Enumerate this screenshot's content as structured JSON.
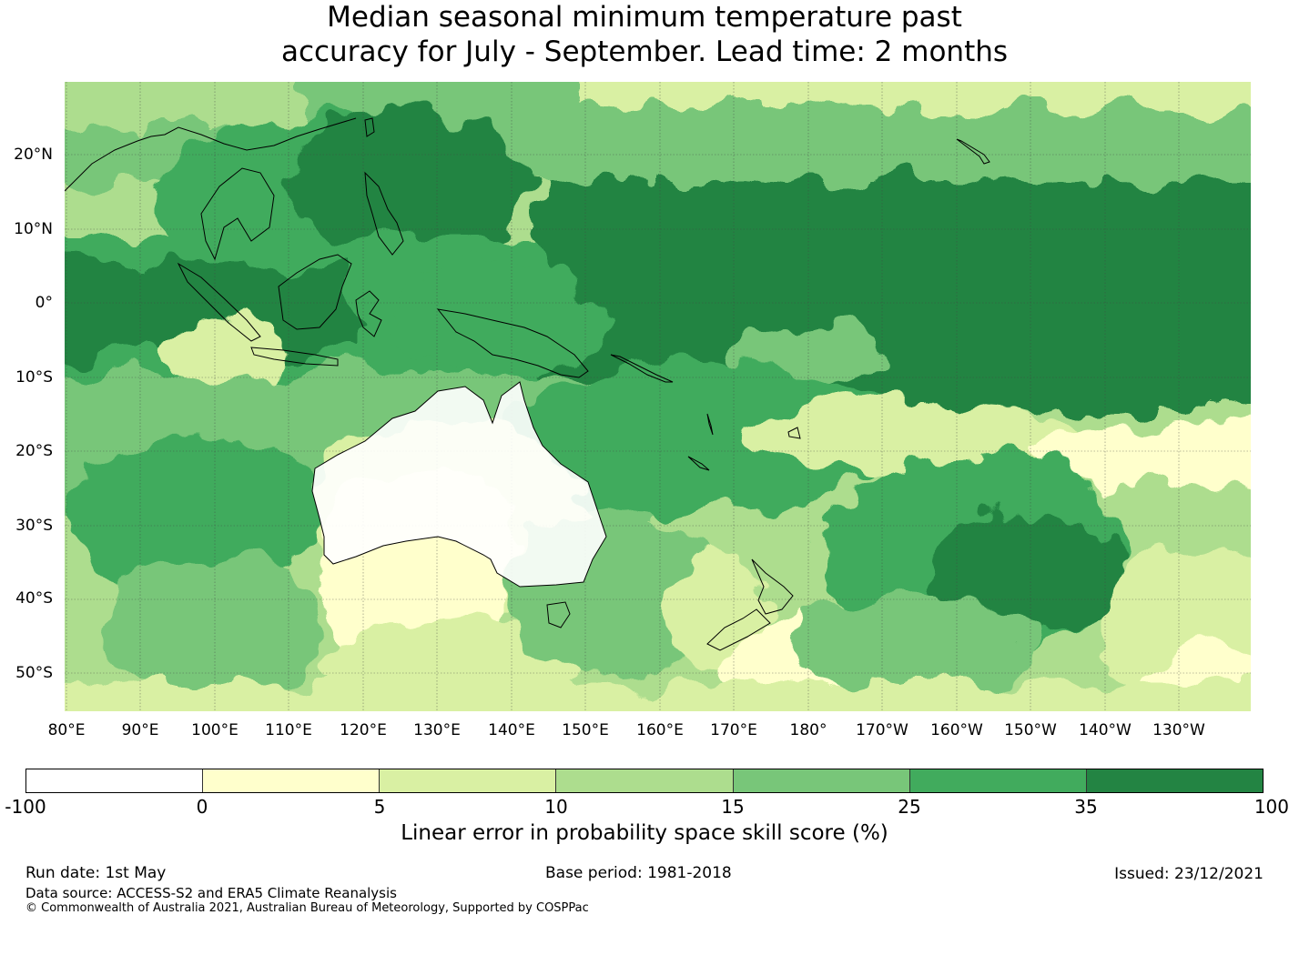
{
  "title_line1": "Median seasonal minimum temperature past",
  "title_line2": "accuracy for July - September. Lead time: 2 months",
  "lat_labels": [
    "20°N",
    "10°N",
    "0°",
    "10°S",
    "20°S",
    "30°S",
    "40°S",
    "50°S"
  ],
  "lon_labels": [
    "80°E",
    "90°E",
    "100°E",
    "110°E",
    "120°E",
    "130°E",
    "140°E",
    "150°E",
    "160°E",
    "170°E",
    "180°",
    "170°W",
    "160°W",
    "150°W",
    "140°W",
    "130°W"
  ],
  "colorbar": {
    "colors": [
      "#ffffff",
      "#ffffcc",
      "#d9f0a3",
      "#addd8e",
      "#78c679",
      "#41ab5d",
      "#238443"
    ],
    "ticks": [
      "-100",
      "0",
      "5",
      "10",
      "15",
      "25",
      "35",
      "100"
    ],
    "label": "Linear error in probability space skill score (%)"
  },
  "footer": {
    "run_date": "Run date: 1st May",
    "base_period": "Base period: 1981-2018",
    "issued": "Issued: 23/12/2021",
    "data_source": "Data source: ACCESS-S2 and ERA5 Climate Reanalysis",
    "copyright": "© Commonwealth of Australia 2021, Australian Bureau of Meteorology, Supported by COSPPac"
  }
}
